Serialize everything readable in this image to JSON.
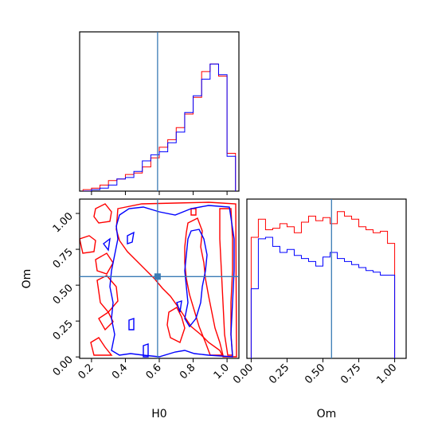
{
  "colors": {
    "red": "#ff0000",
    "blue": "#0000ff",
    "truth": "#3a7bb5"
  },
  "chart_data": [
    {
      "type": "histogram",
      "panel": "H0 marginal",
      "xlim": [
        0.13,
        1.07
      ],
      "bins_x": [
        0.15,
        0.2,
        0.25,
        0.3,
        0.35,
        0.4,
        0.45,
        0.5,
        0.55,
        0.6,
        0.65,
        0.7,
        0.75,
        0.8,
        0.85,
        0.9,
        0.95,
        1.0,
        1.05
      ],
      "series": [
        {
          "color": "red",
          "values": [
            0.01,
            0.02,
            0.04,
            0.07,
            0.08,
            0.11,
            0.12,
            0.16,
            0.22,
            0.29,
            0.34,
            0.42,
            0.51,
            0.62,
            0.79,
            0.84,
            0.76,
            0.25
          ]
        },
        {
          "color": "blue",
          "values": [
            0.0,
            0.01,
            0.02,
            0.04,
            0.08,
            0.09,
            0.13,
            0.2,
            0.24,
            0.26,
            0.32,
            0.39,
            0.52,
            0.63,
            0.74,
            0.84,
            0.77,
            0.23
          ]
        }
      ],
      "truth": 0.59
    },
    {
      "type": "contour",
      "panel": "H0 vs Om",
      "xlabel": "H0",
      "ylabel": "Om",
      "xlim": [
        0.13,
        1.07
      ],
      "ylim": [
        -0.01,
        1.1
      ],
      "x_ticks": [
        "0.2",
        "0.4",
        "0.6",
        "0.8",
        "1.0"
      ],
      "y_ticks": [
        "0.00",
        "0.25",
        "0.50",
        "0.75",
        "1.00"
      ],
      "truth": [
        0.59,
        0.56
      ]
    },
    {
      "type": "histogram",
      "panel": "Om marginal",
      "xlabel": "Om",
      "xlim": [
        -0.03,
        1.08
      ],
      "x_ticks": [
        "0.00",
        "0.25",
        "0.50",
        "0.75",
        "1.00"
      ],
      "bins_x": [
        0.0,
        0.05,
        0.1,
        0.15,
        0.2,
        0.25,
        0.3,
        0.35,
        0.4,
        0.45,
        0.5,
        0.55,
        0.6,
        0.65,
        0.7,
        0.75,
        0.8,
        0.85,
        0.9,
        0.95,
        1.0
      ],
      "series": [
        {
          "color": "red",
          "values": [
            0.8,
            0.92,
            0.85,
            0.86,
            0.89,
            0.87,
            0.83,
            0.9,
            0.94,
            0.91,
            0.93,
            0.89,
            0.97,
            0.94,
            0.92,
            0.87,
            0.85,
            0.83,
            0.84,
            0.76,
            0.0
          ]
        },
        {
          "color": "blue",
          "values": [
            0.46,
            0.79,
            0.8,
            0.74,
            0.7,
            0.72,
            0.68,
            0.66,
            0.64,
            0.61,
            0.67,
            0.7,
            0.66,
            0.64,
            0.62,
            0.6,
            0.58,
            0.57,
            0.55,
            0.55,
            0.0
          ]
        }
      ],
      "truth": 0.56
    }
  ]
}
